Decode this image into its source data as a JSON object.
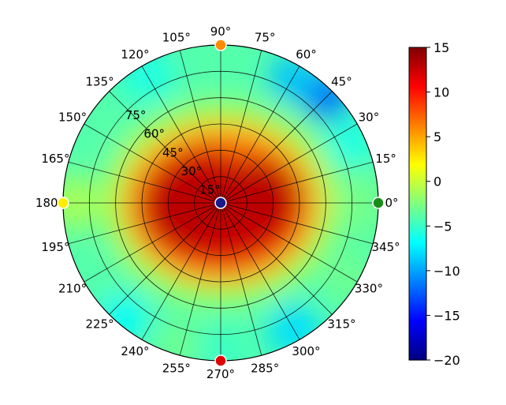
{
  "chart_data": {
    "type": "heatmap",
    "projection": "polar",
    "title": "",
    "grid": true,
    "azimuth_labels": [
      "0°",
      "15°",
      "30°",
      "45°",
      "60°",
      "75°",
      "90°",
      "105°",
      "120°",
      "135°",
      "150°",
      "165°",
      "180°",
      "195°",
      "210°",
      "225°",
      "240°",
      "255°",
      "270°",
      "285°",
      "300°",
      "315°",
      "330°",
      "345°"
    ],
    "azimuth_degrees": [
      0,
      15,
      30,
      45,
      60,
      75,
      90,
      105,
      120,
      135,
      150,
      165,
      180,
      195,
      210,
      225,
      240,
      255,
      270,
      285,
      300,
      315,
      330,
      345
    ],
    "radial_labels": [
      "15°",
      "30°",
      "45°",
      "60°",
      "75°"
    ],
    "radial_values": [
      15,
      30,
      45,
      60,
      75
    ],
    "radial_range": [
      0,
      90
    ],
    "colorbar": {
      "colormap": "jet",
      "range": [
        -20,
        15
      ],
      "tick_labels": [
        "15",
        "10",
        "5",
        "0",
        "−5",
        "−10",
        "−15",
        "−20"
      ],
      "tick_values": [
        15,
        10,
        5,
        0,
        -5,
        -10,
        -15,
        -20
      ]
    },
    "field_description_points": [
      {
        "azimuth": 0,
        "polar": 0,
        "value": 13
      },
      {
        "azimuth": 0,
        "polar": 30,
        "value": 13
      },
      {
        "azimuth": 180,
        "polar": 30,
        "value": 13
      },
      {
        "azimuth": 90,
        "polar": 30,
        "value": 12
      },
      {
        "azimuth": 270,
        "polar": 30,
        "value": 11
      },
      {
        "azimuth": 0,
        "polar": 60,
        "value": 2
      },
      {
        "azimuth": 180,
        "polar": 60,
        "value": 3
      },
      {
        "azimuth": 90,
        "polar": 60,
        "value": -2
      },
      {
        "azimuth": 270,
        "polar": 60,
        "value": 0
      },
      {
        "azimuth": 0,
        "polar": 85,
        "value": -4
      },
      {
        "azimuth": 45,
        "polar": 85,
        "value": -12
      },
      {
        "azimuth": 60,
        "polar": 80,
        "value": -8
      },
      {
        "azimuth": 90,
        "polar": 85,
        "value": -3
      },
      {
        "azimuth": 135,
        "polar": 85,
        "value": -4
      },
      {
        "azimuth": 180,
        "polar": 85,
        "value": -2
      },
      {
        "azimuth": 225,
        "polar": 85,
        "value": -5
      },
      {
        "azimuth": 270,
        "polar": 85,
        "value": -4
      },
      {
        "azimuth": 300,
        "polar": 85,
        "value": -6
      },
      {
        "azimuth": 315,
        "polar": 85,
        "value": -4
      }
    ],
    "markers": [
      {
        "name": "center",
        "azimuth": 0,
        "polar": 0,
        "color": "#1a1a8c"
      },
      {
        "name": "0-degree",
        "azimuth": 0,
        "polar": 90,
        "color": "#1a8c1a"
      },
      {
        "name": "90-degree",
        "azimuth": 90,
        "polar": 90,
        "color": "#ff8c00"
      },
      {
        "name": "180-degree",
        "azimuth": 180,
        "polar": 90,
        "color": "#ffee00"
      },
      {
        "name": "270-degree",
        "azimuth": 270,
        "polar": 90,
        "color": "#e00000"
      }
    ]
  }
}
